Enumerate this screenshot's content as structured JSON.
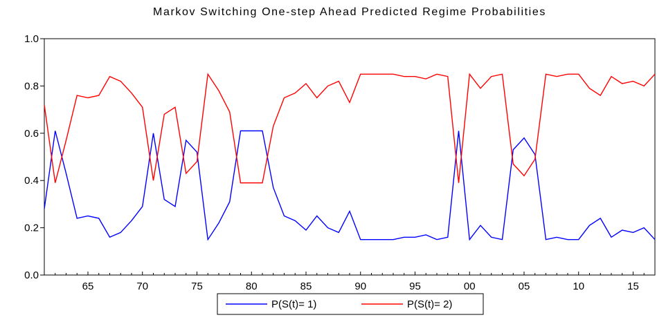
{
  "chart_data": {
    "type": "line",
    "title": "Markov Switching One-step Ahead Predicted Regime Probabilities",
    "xlabel": "",
    "ylabel": "",
    "ylim": [
      0.0,
      1.0
    ],
    "yticks": [
      "0.0",
      "0.2",
      "0.4",
      "0.6",
      "0.8",
      "1.0"
    ],
    "xticks": [
      {
        "year": 1965,
        "label": "65"
      },
      {
        "year": 1970,
        "label": "70"
      },
      {
        "year": 1975,
        "label": "75"
      },
      {
        "year": 1980,
        "label": "80"
      },
      {
        "year": 1985,
        "label": "85"
      },
      {
        "year": 1990,
        "label": "90"
      },
      {
        "year": 1995,
        "label": "95"
      },
      {
        "year": 2000,
        "label": "00"
      },
      {
        "year": 2005,
        "label": "05"
      },
      {
        "year": 2010,
        "label": "10"
      },
      {
        "year": 2015,
        "label": "15"
      }
    ],
    "xlim": [
      1961,
      2017
    ],
    "grid": false,
    "legend_position": "bottom",
    "x": [
      1961,
      1962,
      1963,
      1964,
      1965,
      1966,
      1967,
      1968,
      1969,
      1970,
      1971,
      1972,
      1973,
      1974,
      1975,
      1976,
      1977,
      1978,
      1979,
      1980,
      1981,
      1982,
      1983,
      1984,
      1985,
      1986,
      1987,
      1988,
      1989,
      1990,
      1991,
      1992,
      1993,
      1994,
      1995,
      1996,
      1997,
      1998,
      1999,
      2000,
      2001,
      2002,
      2003,
      2004,
      2005,
      2006,
      2007,
      2008,
      2009,
      2010,
      2011,
      2012,
      2013,
      2014,
      2015,
      2016,
      2017
    ],
    "series": [
      {
        "name": "P(S(t)= 1)",
        "color": "#0000ff",
        "values": [
          0.28,
          0.61,
          0.43,
          0.24,
          0.25,
          0.24,
          0.16,
          0.18,
          0.23,
          0.29,
          0.6,
          0.32,
          0.29,
          0.57,
          0.52,
          0.15,
          0.22,
          0.31,
          0.61,
          0.61,
          0.61,
          0.37,
          0.25,
          0.23,
          0.19,
          0.25,
          0.2,
          0.18,
          0.27,
          0.15,
          0.15,
          0.15,
          0.15,
          0.16,
          0.16,
          0.17,
          0.15,
          0.16,
          0.61,
          0.15,
          0.21,
          0.16,
          0.15,
          0.53,
          0.58,
          0.51,
          0.15,
          0.16,
          0.15,
          0.15,
          0.21,
          0.24,
          0.16,
          0.19,
          0.18,
          0.2,
          0.15
        ]
      },
      {
        "name": "P(S(t)= 2)",
        "color": "#ff0000",
        "values": [
          0.72,
          0.39,
          0.57,
          0.76,
          0.75,
          0.76,
          0.84,
          0.82,
          0.77,
          0.71,
          0.4,
          0.68,
          0.71,
          0.43,
          0.48,
          0.85,
          0.78,
          0.69,
          0.39,
          0.39,
          0.39,
          0.63,
          0.75,
          0.77,
          0.81,
          0.75,
          0.8,
          0.82,
          0.73,
          0.85,
          0.85,
          0.85,
          0.85,
          0.84,
          0.84,
          0.83,
          0.85,
          0.84,
          0.39,
          0.85,
          0.79,
          0.84,
          0.85,
          0.47,
          0.42,
          0.49,
          0.85,
          0.84,
          0.85,
          0.85,
          0.79,
          0.76,
          0.84,
          0.81,
          0.82,
          0.8,
          0.85
        ]
      }
    ]
  }
}
